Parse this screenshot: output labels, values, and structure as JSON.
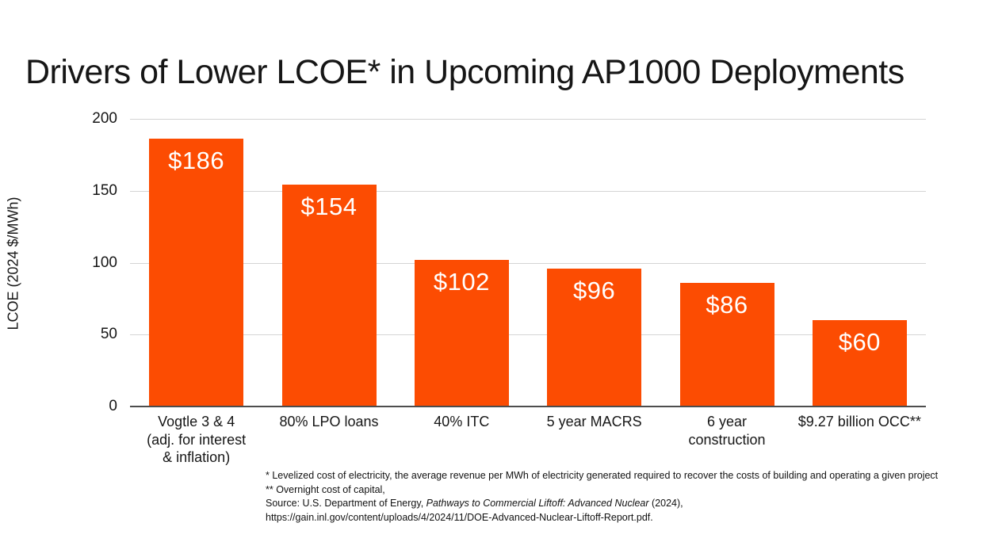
{
  "chart_data": {
    "type": "bar",
    "title": "Drivers of Lower LCOE* in Upcoming AP1000 Deployments",
    "xlabel": "",
    "ylabel": "LCOE (2024 $/MWh)",
    "ylim": [
      0,
      200
    ],
    "yticks": [
      0,
      50,
      100,
      150,
      200
    ],
    "categories": [
      "Vogtle 3 & 4\n(adj. for interest\n& inflation)",
      "80% LPO loans",
      "40% ITC",
      "5 year MACRS",
      "6 year\nconstruction",
      "$9.27 billion OCC**"
    ],
    "values": [
      186,
      154,
      102,
      96,
      86,
      60
    ],
    "bar_labels": [
      "$186",
      "$154",
      "$102",
      "$96",
      "$86",
      "$60"
    ],
    "bar_color": "#FC4C02",
    "grid": "horizontal",
    "legend_position": "none"
  },
  "footnotes": {
    "line1": "* Levelized cost of electricity, the average revenue per MWh of electricity generated required to recover the costs of building and operating a given project",
    "line2": "** Overnight cost of capital,",
    "source_prefix": "Source: U.S. Department of Energy, ",
    "source_italic": "Pathways to Commercial Liftoff: Advanced Nuclear",
    "source_suffix": " (2024),",
    "line4": "https://gain.inl.gov/content/uploads/4/2024/11/DOE-Advanced-Nuclear-Liftoff-Report.pdf."
  }
}
